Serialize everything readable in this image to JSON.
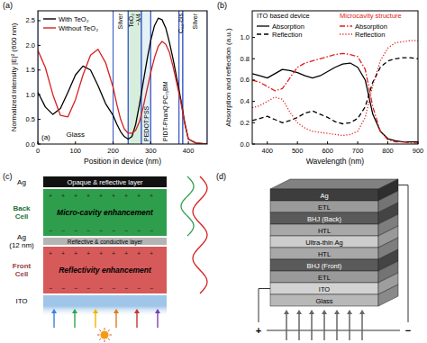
{
  "chart_data": [
    {
      "type": "line",
      "panel_label": "(a)",
      "inner_label": "(a)",
      "x_label": "Position in device (nm)",
      "y_label": "Normalized intensity |E|² (600 nm)",
      "xlim": [
        0,
        450
      ],
      "xticks": [
        0,
        100,
        200,
        300,
        400
      ],
      "ylim": [
        0,
        2.7
      ],
      "yticks": [
        {
          "value": 0,
          "label": "0.0"
        },
        0.5,
        {
          "value": 1,
          "label": "1.0"
        },
        1.5,
        {
          "value": 2,
          "label": "2.0"
        },
        2.5
      ],
      "legend": "upper left",
      "x": [
        0,
        20,
        40,
        60,
        80,
        100,
        120,
        140,
        160,
        180,
        200,
        210,
        220,
        230,
        240,
        250,
        260,
        270,
        280,
        290,
        300,
        310,
        320,
        330,
        340,
        350,
        360,
        370,
        380,
        390,
        400,
        420,
        450
      ],
      "series": [
        {
          "name": "With TeO₂",
          "color": "#000000",
          "line_style": "solid",
          "values": [
            1.05,
            0.75,
            0.6,
            0.72,
            1.05,
            1.4,
            1.58,
            1.5,
            1.18,
            0.82,
            0.58,
            0.4,
            0.25,
            0.15,
            0.1,
            0.15,
            0.4,
            0.8,
            1.25,
            1.7,
            2.1,
            2.4,
            2.55,
            2.52,
            2.35,
            2.05,
            1.7,
            1.3,
            0.9,
            0.45,
            0.1,
            0.02,
            0.0
          ]
        },
        {
          "name": "Without TeO₂",
          "color": "#d62020",
          "line_style": "solid",
          "values": [
            1.9,
            1.55,
            1.0,
            0.58,
            0.55,
            0.9,
            1.4,
            1.8,
            1.92,
            1.65,
            1.15,
            0.8,
            0.5,
            0.3,
            0.22,
            0.22,
            0.28,
            0.45,
            0.75,
            1.1,
            1.45,
            1.75,
            1.98,
            2.08,
            2.02,
            1.85,
            1.55,
            1.2,
            0.85,
            0.42,
            0.1,
            0.02,
            0.0
          ]
        }
      ],
      "regions": [
        {
          "label": "Glass",
          "start": 0,
          "end": 200
        },
        {
          "label": "Silver",
          "start": 200,
          "end": 240
        },
        {
          "label": "TeO₂",
          "sublabel": "~λ/4",
          "start": 240,
          "end": 275,
          "color": "#d8eedd"
        },
        {
          "label": "PEDOT:PSS",
          "start": 275,
          "end": 300,
          "color": "#e4f1f5"
        },
        {
          "label": "PIDT-PhanQ:PC₇₁BM",
          "start": 300,
          "end": 375
        },
        {
          "label": "C₆₀-bis",
          "start": 375,
          "end": 385
        },
        {
          "label": "Silver",
          "start": 385,
          "end": 450
        }
      ]
    },
    {
      "type": "line",
      "panel_label": "(b)",
      "x_label": "Wavelength (nm)",
      "y_label": "Absorption and reflection (a.u.)",
      "xlim": [
        350,
        900
      ],
      "xticks": [
        400,
        500,
        600,
        700,
        800,
        900
      ],
      "ylim": [
        0,
        1.25
      ],
      "yticks": [
        {
          "value": 0,
          "label": "0.0"
        },
        0.2,
        0.4,
        0.6,
        0.8,
        {
          "value": 1,
          "label": "1.0"
        }
      ],
      "legend": "upper left",
      "legend_titles": [
        "ITO based device",
        "Microcavity structure"
      ],
      "x": [
        350,
        375,
        400,
        425,
        450,
        475,
        500,
        525,
        550,
        575,
        600,
        625,
        650,
        675,
        700,
        725,
        750,
        775,
        800,
        825,
        850,
        875,
        900
      ],
      "series": [
        {
          "name": "Absorption",
          "color": "#000000",
          "line_style": "solid",
          "values": [
            0.66,
            0.64,
            0.62,
            0.66,
            0.7,
            0.69,
            0.67,
            0.64,
            0.62,
            0.64,
            0.68,
            0.72,
            0.75,
            0.76,
            0.72,
            0.6,
            0.28,
            0.12,
            0.05,
            0.03,
            0.02,
            0.02,
            0.02
          ]
        },
        {
          "name": "Reflection",
          "color": "#000000",
          "line_style": "dashed",
          "values": [
            0.22,
            0.24,
            0.26,
            0.23,
            0.2,
            0.22,
            0.25,
            0.29,
            0.31,
            0.28,
            0.25,
            0.21,
            0.19,
            0.2,
            0.24,
            0.35,
            0.58,
            0.72,
            0.78,
            0.8,
            0.81,
            0.81,
            0.8
          ]
        },
        {
          "name": "Absorption",
          "color": "#e0201b",
          "line_style": "dashdot",
          "values": [
            0.6,
            0.58,
            0.54,
            0.5,
            0.52,
            0.62,
            0.72,
            0.76,
            0.78,
            0.8,
            0.82,
            0.84,
            0.85,
            0.84,
            0.82,
            0.7,
            0.35,
            0.12,
            0.04,
            0.02,
            0.02,
            0.01,
            0.01
          ]
        },
        {
          "name": "Reflection",
          "color": "#e0201b",
          "line_style": "dotted",
          "values": [
            0.34,
            0.36,
            0.4,
            0.44,
            0.42,
            0.3,
            0.2,
            0.15,
            0.12,
            0.11,
            0.1,
            0.09,
            0.08,
            0.09,
            0.12,
            0.25,
            0.55,
            0.78,
            0.9,
            0.95,
            0.96,
            0.97,
            0.97
          ]
        }
      ]
    }
  ],
  "diagrams": {
    "c": {
      "panel_label": "(c)",
      "layers": [
        {
          "side_label": [
            "Ag"
          ],
          "text": "Opaque & reflective layer",
          "color": "#111111"
        },
        {
          "side_label": [
            "Back",
            "Cell"
          ],
          "text": "Micro-cavity enhancement",
          "color": "#2f9e4c"
        },
        {
          "side_label": [
            "Ag",
            "(12 nm)"
          ],
          "text": "Reflective & conductive layer",
          "color": "#b4b4b4"
        },
        {
          "side_label": [
            "Front",
            "Cell"
          ],
          "text": "Reflectivity enhancement",
          "color": "#d75a5a"
        },
        {
          "side_label": [
            "ITO"
          ],
          "color": "#9fc5e8"
        }
      ],
      "charges": [
        "+",
        "−"
      ]
    },
    "d": {
      "panel_label": "(d)",
      "layers": [
        {
          "label": "Ag",
          "color": "#3d3d3d"
        },
        {
          "label": "ETL",
          "color": "#9a9a9a"
        },
        {
          "label": "BHJ (Back)",
          "color": "#5a5a5a"
        },
        {
          "label": "HTL",
          "color": "#a8a8a8"
        },
        {
          "label": "Ultra-thin Ag",
          "color": "#cccccc"
        },
        {
          "label": "HTL",
          "color": "#a8a8a8"
        },
        {
          "label": "BHJ (Front)",
          "color": "#5a5a5a"
        },
        {
          "label": "ETL",
          "color": "#9a9a9a"
        },
        {
          "label": "ITO",
          "color": "#d2d2d2"
        },
        {
          "label": "Glass",
          "color": "#b8b8b8"
        }
      ],
      "terminals": [
        "+",
        "−"
      ]
    }
  }
}
